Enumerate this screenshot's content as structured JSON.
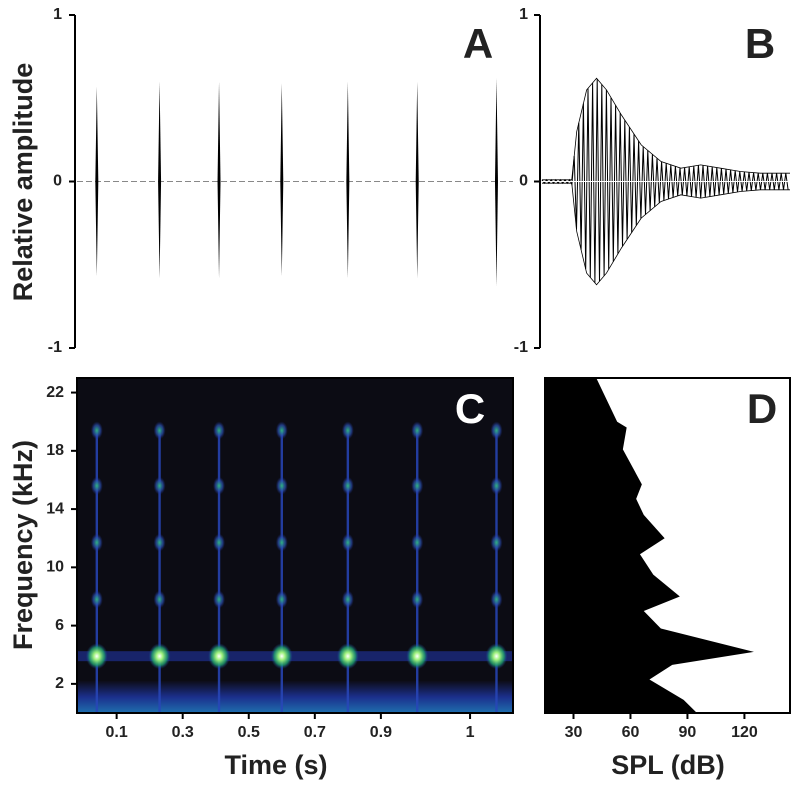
{
  "chart_data": [
    {
      "type": "pulse",
      "panel": "A",
      "ylabel": "Relative amplitude",
      "x": [
        0.04,
        0.23,
        0.41,
        0.6,
        0.8,
        1.01,
        1.25
      ],
      "values": [
        0.57,
        0.6,
        0.6,
        0.59,
        0.6,
        0.6,
        0.62
      ],
      "lows": [
        -0.57,
        -0.58,
        -0.58,
        -0.57,
        -0.58,
        -0.58,
        -0.63
      ],
      "xlim": [
        -0.02,
        1.3
      ],
      "ylim": [
        -1,
        1
      ],
      "yticks": [
        -1,
        0,
        1
      ],
      "color": "#000000"
    },
    {
      "type": "envelope",
      "panel": "B",
      "x": [
        0,
        30,
        35,
        45,
        55,
        65,
        80,
        100,
        120,
        140,
        160,
        180,
        200,
        220,
        250
      ],
      "values": [
        0.01,
        0.01,
        0.3,
        0.55,
        0.62,
        0.55,
        0.4,
        0.22,
        0.12,
        0.08,
        0.1,
        0.08,
        0.06,
        0.05,
        0.05
      ],
      "xlim": [
        0,
        250
      ],
      "ylim": [
        -1,
        1
      ],
      "yticks": [
        -1,
        0,
        1
      ],
      "color": "#000000"
    },
    {
      "type": "spectrogram",
      "panel": "C",
      "xlabel": "Time (s)",
      "ylabel": "Frequency (kHz)",
      "x": [
        0.04,
        0.23,
        0.41,
        0.6,
        0.8,
        1.01,
        1.25
      ],
      "harmonics": [
        3.9,
        7.8,
        11.7,
        15.6,
        19.4
      ],
      "xlim": [
        -0.02,
        1.3
      ],
      "ylim": [
        0,
        23
      ],
      "xticks": [
        0.1,
        0.3,
        0.5,
        0.7,
        0.9,
        {
          "value": 1.17,
          "label": "1"
        }
      ],
      "yticks": [
        2,
        6,
        10,
        14,
        18,
        22
      ]
    },
    {
      "type": "spectrum",
      "panel": "D",
      "xlabel": "SPL (dB)",
      "y": [
        0,
        0.9,
        2.3,
        3.3,
        4.2,
        5.8,
        7,
        8,
        9.5,
        10.9,
        12,
        13.6,
        14.7,
        15.7,
        18.1,
        19.6,
        20,
        23
      ],
      "values": [
        95,
        88,
        70,
        82,
        125,
        76,
        67,
        86,
        72,
        65,
        78,
        67,
        63,
        66,
        56,
        58,
        53,
        42
      ],
      "xlim": [
        15,
        144
      ],
      "ylim": [
        0,
        23
      ],
      "xticks": [
        30,
        60,
        90,
        120
      ],
      "color": "#000000"
    }
  ]
}
